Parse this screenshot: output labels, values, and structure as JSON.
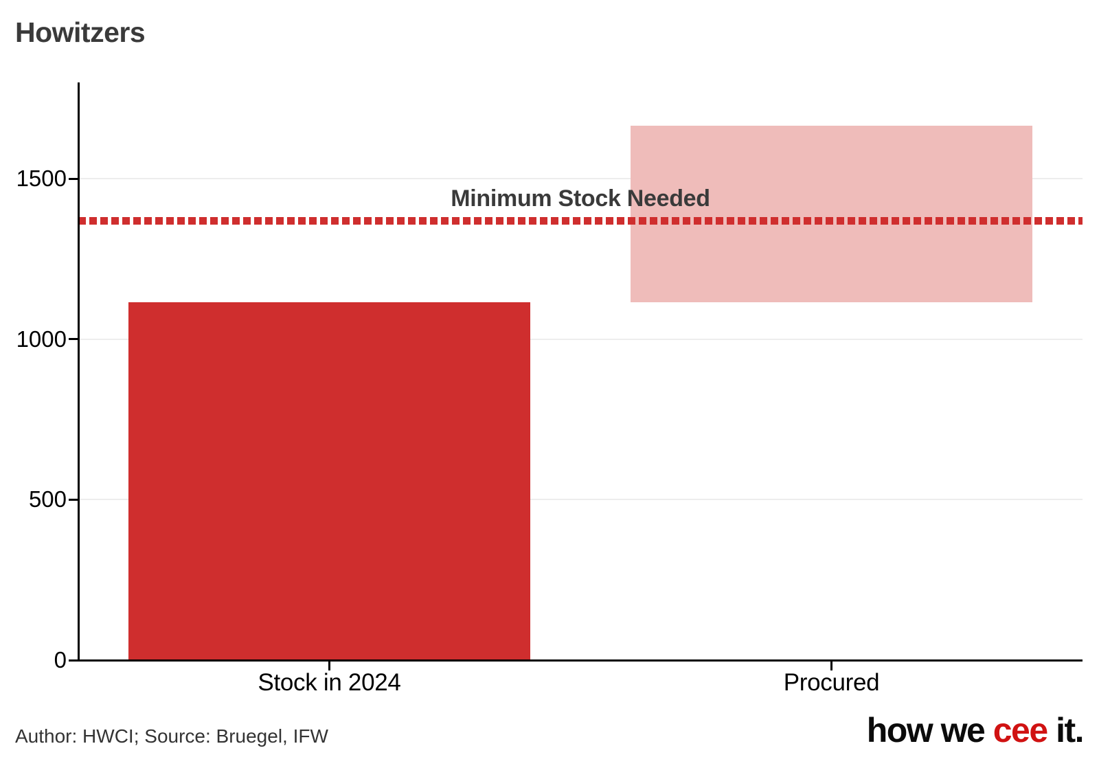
{
  "chart_data": {
    "type": "bar",
    "title": "Howitzers",
    "categories": [
      "Stock in 2024",
      "Procured"
    ],
    "series": [
      {
        "name": "Stock in 2024",
        "start": 0,
        "end": 1115,
        "color": "#cf2e2e"
      },
      {
        "name": "Procured",
        "start": 1115,
        "end": 1665,
        "color": "#efbcba"
      }
    ],
    "reference_line": {
      "label": "Minimum Stock Needed",
      "value": 1370,
      "style": "dotted",
      "color": "#cf2e2e"
    },
    "ylim": [
      0,
      1800
    ],
    "yticks": [
      0,
      500,
      1000,
      1500
    ],
    "xlabel": "",
    "ylabel": "",
    "grid": "horizontal",
    "legend": "none",
    "bar_width_fraction": 0.8
  },
  "footer": {
    "credit": "Author: HWCI; Source: Bruegel, IFW",
    "logo": {
      "part1": "how we ",
      "part2": "cee",
      "part3": " it.",
      "accent_color": "#d01212"
    }
  },
  "colors": {
    "bar_red": "#cf2e2e",
    "bar_pink": "#efbcba",
    "reference_red": "#cf2e2e",
    "title_text": "#3a3a3a",
    "axis_text": "#000000",
    "footer_text": "#333333",
    "gridline": "#ededed",
    "spine": "#000000"
  }
}
